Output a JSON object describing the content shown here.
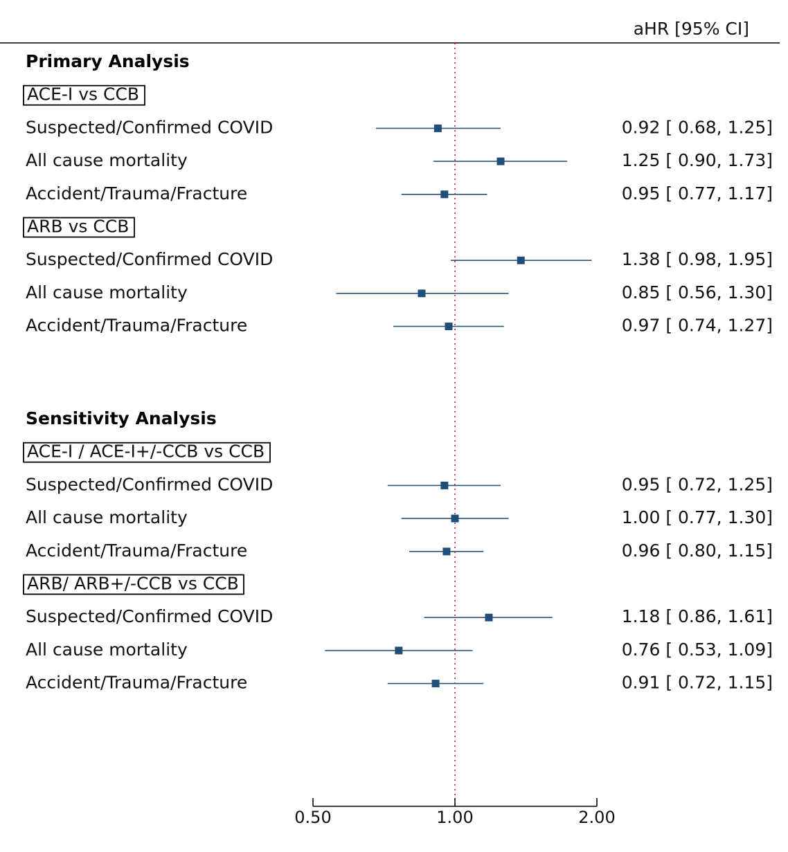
{
  "chart_data": {
    "type": "forest",
    "column_header": "aHR [95% CI]",
    "x_scale": "log",
    "xlim": [
      0.5,
      2.0
    ],
    "x_ticks": [
      "0.50",
      "1.00",
      "2.00"
    ],
    "reference_line": 1.0,
    "colors": {
      "marker": "#1f4e79",
      "ci_line": "#2a5578",
      "reference": "#c8102e"
    },
    "sections": [
      {
        "title": "Primary Analysis",
        "groups": [
          {
            "label": "ACE-I vs CCB",
            "rows": [
              {
                "label": "Suspected/Confirmed COVID",
                "est": 0.92,
                "lo": 0.68,
                "hi": 1.25,
                "text": "0.92 [  0.68,  1.25]"
              },
              {
                "label": "All cause mortality",
                "est": 1.25,
                "lo": 0.9,
                "hi": 1.73,
                "text": "1.25 [  0.90,  1.73]"
              },
              {
                "label": "Accident/Trauma/Fracture",
                "est": 0.95,
                "lo": 0.77,
                "hi": 1.17,
                "text": "0.95 [  0.77,  1.17]"
              }
            ]
          },
          {
            "label": "ARB vs CCB",
            "rows": [
              {
                "label": "Suspected/Confirmed COVID",
                "est": 1.38,
                "lo": 0.98,
                "hi": 1.95,
                "text": "1.38 [  0.98,  1.95]"
              },
              {
                "label": "All cause mortality",
                "est": 0.85,
                "lo": 0.56,
                "hi": 1.3,
                "text": "0.85 [  0.56,  1.30]"
              },
              {
                "label": "Accident/Trauma/Fracture",
                "est": 0.97,
                "lo": 0.74,
                "hi": 1.27,
                "text": "0.97 [  0.74,  1.27]"
              }
            ]
          }
        ]
      },
      {
        "title": "Sensitivity Analysis",
        "groups": [
          {
            "label": "ACE-I / ACE-I+/-CCB vs CCB",
            "rows": [
              {
                "label": "Suspected/Confirmed COVID",
                "est": 0.95,
                "lo": 0.72,
                "hi": 1.25,
                "text": "0.95 [  0.72,  1.25]"
              },
              {
                "label": "All cause mortality",
                "est": 1.0,
                "lo": 0.77,
                "hi": 1.3,
                "text": "1.00 [  0.77,  1.30]"
              },
              {
                "label": "Accident/Trauma/Fracture",
                "est": 0.96,
                "lo": 0.8,
                "hi": 1.15,
                "text": "0.96 [  0.80,  1.15]"
              }
            ]
          },
          {
            "label": "ARB/ ARB+/-CCB vs CCB",
            "rows": [
              {
                "label": "Suspected/Confirmed COVID",
                "est": 1.18,
                "lo": 0.86,
                "hi": 1.61,
                "text": "1.18 [  0.86,  1.61]"
              },
              {
                "label": "All cause mortality",
                "est": 0.76,
                "lo": 0.53,
                "hi": 1.09,
                "text": "0.76 [  0.53,  1.09]"
              },
              {
                "label": "Accident/Trauma/Fracture",
                "est": 0.91,
                "lo": 0.72,
                "hi": 1.15,
                "text": "0.91 [  0.72,  1.15]"
              }
            ]
          }
        ]
      }
    ]
  }
}
